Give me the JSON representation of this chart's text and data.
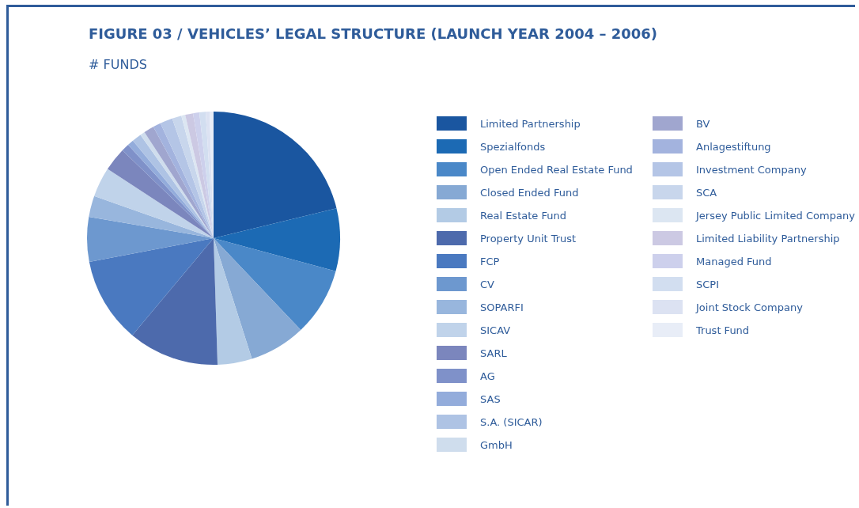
{
  "chart_data": {
    "type": "pie",
    "title": "FIGURE 03 / VEHICLES’ LEGAL STRUCTURE (LAUNCH YEAR 2004 – 2006)",
    "subtitle": "# FUNDS",
    "legend": "right",
    "categories": [
      "Limited Partnership",
      "Spezialfonds",
      "Open Ended Real Estate Fund",
      "Closed Ended Fund",
      "Real Estate Fund",
      "Property Unit Trust",
      "FCP",
      "CV",
      "SOPARFI",
      "SICAV",
      "SARL",
      "AG",
      "SAS",
      "S.A. (SICAR)",
      "GmbH",
      "BV",
      "Anlagestiftung",
      "Investment Company",
      "SCA",
      "Jersey Public Limited Company",
      "Limited Liability Partnership",
      "Managed Fund",
      "SCPI",
      "Joint Stock Company",
      "Trust Fund"
    ],
    "values": [
      21.2,
      8.0,
      8.7,
      7.2,
      4.4,
      11.6,
      10.9,
      5.7,
      2.7,
      3.8,
      3.0,
      1.0,
      0.8,
      1.2,
      0.6,
      1.3,
      1.0,
      1.6,
      1.2,
      0.5,
      1.0,
      0.8,
      0.8,
      0.5,
      0.5
    ],
    "colors": [
      "#1a56a0",
      "#1c6ab4",
      "#4a88c8",
      "#86a9d4",
      "#b3cbe5",
      "#4d6aac",
      "#4a79c0",
      "#6d98cf",
      "#98b6dd",
      "#c0d3ea",
      "#7b86bd",
      "#7f91c9",
      "#93acdb",
      "#aec3e4",
      "#cfdded",
      "#a0a6cf",
      "#a3b3de",
      "#b4c5e6",
      "#c8d6ec",
      "#dce6f2",
      "#ccc9e3",
      "#cdd0ec",
      "#d2def0",
      "#dce2f2",
      "#e8edf7"
    ]
  }
}
